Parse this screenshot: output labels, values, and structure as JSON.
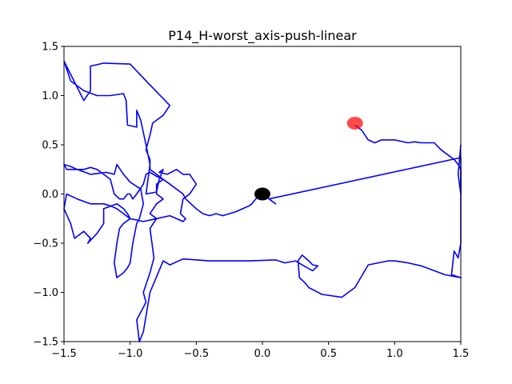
{
  "chart_data": {
    "type": "line",
    "title": "P14_H-worst_axis-push-linear",
    "xlabel": "",
    "ylabel": "",
    "xlim": [
      -1.5,
      1.5
    ],
    "ylim": [
      -1.5,
      1.5
    ],
    "grid": false,
    "x_ticks": [
      "−1.5",
      "−1.0",
      "−0.5",
      "0.0",
      "0.5",
      "1.0",
      "1.5"
    ],
    "y_ticks": [
      "1.5",
      "1.0",
      "0.5",
      "0.0",
      "−0.5",
      "−1.0",
      "−1.5"
    ],
    "x_tick_values": [
      -1.5,
      -1.0,
      -0.5,
      0.0,
      0.5,
      1.0,
      1.5
    ],
    "y_tick_values": [
      1.5,
      1.0,
      0.5,
      0.0,
      -0.5,
      -1.0,
      -1.5
    ],
    "series": [
      {
        "color": "#0000ff",
        "points": [
          [
            0.0,
            0.0
          ],
          [
            0.1,
            -0.1
          ],
          [
            0.05,
            -0.05
          ],
          [
            1.5,
            0.37
          ],
          [
            1.5,
            -0.5
          ],
          [
            1.48,
            -0.65
          ],
          [
            1.45,
            -0.58
          ],
          [
            1.43,
            -0.82
          ],
          [
            1.5,
            -0.85
          ],
          [
            1.38,
            -0.82
          ],
          [
            1.2,
            -0.73
          ],
          [
            1.1,
            -0.7
          ],
          [
            1.0,
            -0.68
          ],
          [
            0.95,
            -0.68
          ],
          [
            0.8,
            -0.72
          ],
          [
            0.7,
            -0.95
          ],
          [
            0.6,
            -1.05
          ],
          [
            0.45,
            -1.02
          ],
          [
            0.35,
            -0.95
          ],
          [
            0.32,
            -0.9
          ],
          [
            0.28,
            -0.85
          ],
          [
            0.27,
            -0.68
          ],
          [
            0.3,
            -0.62
          ],
          [
            0.35,
            -0.68
          ],
          [
            0.38,
            -0.72
          ],
          [
            0.42,
            -0.73
          ],
          [
            0.38,
            -0.78
          ],
          [
            0.3,
            -0.72
          ],
          [
            0.25,
            -0.68
          ],
          [
            0.17,
            -0.7
          ],
          [
            0.1,
            -0.67
          ],
          [
            -0.1,
            -0.68
          ],
          [
            -0.4,
            -0.68
          ],
          [
            -0.6,
            -0.66
          ],
          [
            -0.7,
            -0.72
          ],
          [
            -0.75,
            -0.68
          ],
          [
            -0.85,
            -1.0
          ],
          [
            -0.9,
            -1.4
          ],
          [
            -0.93,
            -1.55
          ],
          [
            -0.95,
            -1.28
          ],
          [
            -0.88,
            -1.1
          ],
          [
            -0.9,
            -1.0
          ],
          [
            -0.85,
            -0.8
          ],
          [
            -0.82,
            -0.65
          ],
          [
            -0.85,
            -0.35
          ],
          [
            -0.8,
            -0.25
          ],
          [
            -0.85,
            -0.2
          ],
          [
            -0.8,
            -0.1
          ],
          [
            -0.75,
            -0.05
          ],
          [
            -0.8,
            0.0
          ],
          [
            -0.8,
            0.1
          ],
          [
            -0.75,
            0.15
          ],
          [
            -0.8,
            0.2
          ],
          [
            -0.85,
            0.25
          ],
          [
            -0.85,
            0.35
          ],
          [
            -0.88,
            0.45
          ],
          [
            -0.85,
            0.6
          ],
          [
            -0.83,
            0.72
          ],
          [
            -0.75,
            0.8
          ],
          [
            -0.7,
            0.9
          ],
          [
            -0.88,
            1.15
          ],
          [
            -1.0,
            1.32
          ],
          [
            -1.2,
            1.33
          ],
          [
            -1.3,
            1.3
          ],
          [
            -1.3,
            1.05
          ],
          [
            -1.35,
            0.95
          ],
          [
            -1.5,
            1.35
          ],
          [
            -1.45,
            1.15
          ],
          [
            -1.35,
            1.05
          ],
          [
            -1.25,
            1.0
          ],
          [
            -1.15,
            1.0
          ],
          [
            -1.05,
            1.02
          ],
          [
            -1.03,
            0.95
          ],
          [
            -1.02,
            0.7
          ],
          [
            -0.95,
            0.68
          ],
          [
            -0.95,
            0.85
          ],
          [
            -0.92,
            0.75
          ],
          [
            -0.88,
            0.5
          ],
          [
            -0.85,
            0.3
          ],
          [
            -0.88,
            0.0
          ],
          [
            -0.8,
            0.02
          ],
          [
            -0.78,
            0.15
          ],
          [
            -0.75,
            0.25
          ],
          [
            -0.78,
            0.22
          ],
          [
            -0.72,
            0.2
          ],
          [
            -0.65,
            0.25
          ],
          [
            -0.6,
            0.2
          ],
          [
            -0.55,
            0.2
          ],
          [
            -0.5,
            0.1
          ],
          [
            -0.55,
            0.0
          ],
          [
            -0.6,
            -0.05
          ],
          [
            -0.62,
            -0.2
          ],
          [
            -0.58,
            -0.25
          ],
          [
            -0.6,
            -0.28
          ],
          [
            -0.7,
            -0.22
          ],
          [
            -0.8,
            -0.25
          ],
          [
            -0.9,
            -0.28
          ],
          [
            -1.0,
            -0.25
          ],
          [
            -1.05,
            -0.2
          ],
          [
            -1.1,
            -0.15
          ],
          [
            -1.15,
            -0.12
          ],
          [
            -1.2,
            -0.1
          ],
          [
            -1.3,
            -0.1
          ],
          [
            -1.4,
            -0.05
          ],
          [
            -1.48,
            0.0
          ],
          [
            -1.5,
            -0.15
          ],
          [
            -1.45,
            -0.3
          ],
          [
            -1.42,
            -0.45
          ],
          [
            -1.35,
            -0.38
          ],
          [
            -1.3,
            -0.45
          ],
          [
            -1.32,
            -0.5
          ],
          [
            -1.25,
            -0.4
          ],
          [
            -1.2,
            -0.3
          ],
          [
            -1.2,
            -0.15
          ],
          [
            -1.1,
            -0.1
          ],
          [
            -1.05,
            -0.15
          ],
          [
            -1.02,
            -0.2
          ],
          [
            -1.0,
            -0.25
          ],
          [
            -1.05,
            -0.3
          ],
          [
            -1.08,
            -0.35
          ],
          [
            -1.1,
            -0.5
          ],
          [
            -1.12,
            -0.7
          ],
          [
            -1.1,
            -0.85
          ],
          [
            -1.05,
            -0.8
          ],
          [
            -1.02,
            -0.75
          ],
          [
            -1.0,
            -0.7
          ],
          [
            -0.98,
            -0.5
          ],
          [
            -0.95,
            -0.3
          ],
          [
            -0.93,
            -0.25
          ],
          [
            -0.9,
            -0.1
          ],
          [
            -0.92,
            0.05
          ],
          [
            -1.0,
            0.12
          ],
          [
            -1.05,
            0.2
          ],
          [
            -1.1,
            0.3
          ],
          [
            -1.12,
            0.2
          ],
          [
            -1.18,
            0.22
          ],
          [
            -1.3,
            0.2
          ],
          [
            -1.4,
            0.25
          ],
          [
            -1.45,
            0.28
          ],
          [
            -1.5,
            0.3
          ],
          [
            -1.48,
            0.25
          ],
          [
            -1.35,
            0.25
          ],
          [
            -1.3,
            0.27
          ],
          [
            -1.25,
            0.25
          ],
          [
            -1.2,
            0.2
          ],
          [
            -1.15,
            0.15
          ],
          [
            -1.12,
            0.0
          ],
          [
            -1.08,
            -0.05
          ],
          [
            -1.05,
            -0.05
          ],
          [
            -1.02,
            0.0
          ],
          [
            -1.0,
            0.0
          ],
          [
            -0.98,
            -0.05
          ],
          [
            -0.95,
            0.0
          ],
          [
            -0.9,
            0.1
          ],
          [
            -0.88,
            0.2
          ],
          [
            -0.85,
            0.22
          ],
          [
            -0.8,
            0.18
          ],
          [
            -0.75,
            0.15
          ],
          [
            -0.7,
            0.1
          ],
          [
            -0.65,
            0.05
          ],
          [
            -0.6,
            0.0
          ],
          [
            -0.58,
            -0.05
          ],
          [
            -0.5,
            -0.15
          ],
          [
            -0.45,
            -0.2
          ],
          [
            -0.4,
            -0.22
          ],
          [
            -0.35,
            -0.2
          ],
          [
            -0.3,
            -0.22
          ],
          [
            -0.25,
            -0.2
          ],
          [
            -0.2,
            -0.18
          ],
          [
            -0.15,
            -0.15
          ],
          [
            -0.1,
            -0.12
          ],
          [
            -0.08,
            -0.1
          ],
          [
            -0.05,
            -0.05
          ],
          [
            0.0,
            0.0
          ]
        ]
      },
      {
        "color": "#0000ff",
        "points": [
          [
            0.7,
            0.7
          ],
          [
            0.75,
            0.65
          ],
          [
            0.8,
            0.55
          ],
          [
            0.85,
            0.52
          ],
          [
            0.9,
            0.55
          ],
          [
            0.95,
            0.55
          ],
          [
            1.0,
            0.55
          ],
          [
            1.1,
            0.52
          ],
          [
            1.15,
            0.53
          ],
          [
            1.2,
            0.52
          ],
          [
            1.3,
            0.52
          ],
          [
            1.35,
            0.45
          ],
          [
            1.4,
            0.4
          ],
          [
            1.45,
            0.35
          ],
          [
            1.48,
            0.3
          ],
          [
            1.5,
            0.25
          ],
          [
            1.5,
            0.0
          ],
          [
            1.48,
            0.2
          ],
          [
            1.5,
            0.5
          ]
        ]
      }
    ],
    "markers": [
      {
        "name": "start",
        "x": 0.0,
        "y": 0.0,
        "color": "#000000"
      },
      {
        "name": "goal",
        "x": 0.7,
        "y": 0.72,
        "color": "#ff0000",
        "alpha": 0.7
      }
    ]
  }
}
